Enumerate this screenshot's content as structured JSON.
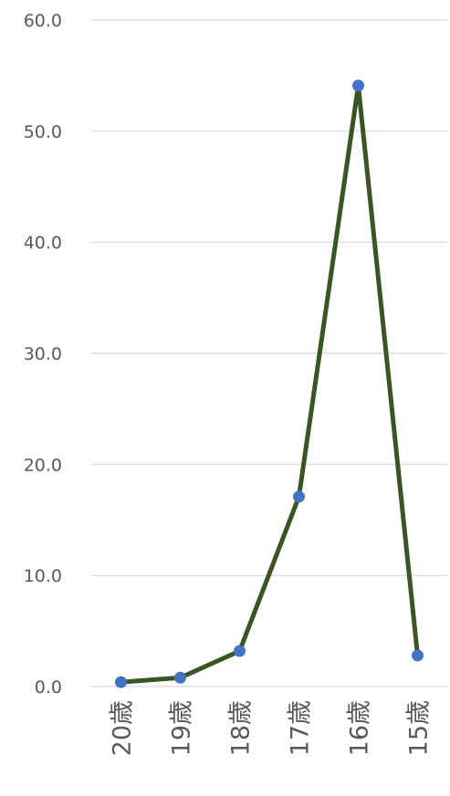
{
  "chart_data": {
    "type": "line",
    "title": "",
    "xlabel": "",
    "ylabel": "",
    "categories": [
      "20歳",
      "19歳",
      "18歳",
      "17歳",
      "16歳",
      "15歳"
    ],
    "series": [
      {
        "values": [
          0.4,
          0.8,
          3.2,
          17.1,
          54.1,
          2.8
        ]
      }
    ],
    "ylim": [
      0,
      60
    ],
    "yticks": [
      "0.0",
      "10.0",
      "20.0",
      "30.0",
      "40.0",
      "50.0",
      "60.0"
    ],
    "grid": true,
    "legend": "none",
    "colors": {
      "line": "#375623",
      "marker": "#4472c4",
      "grid": "#d9d9d9",
      "text": "#595959"
    }
  }
}
